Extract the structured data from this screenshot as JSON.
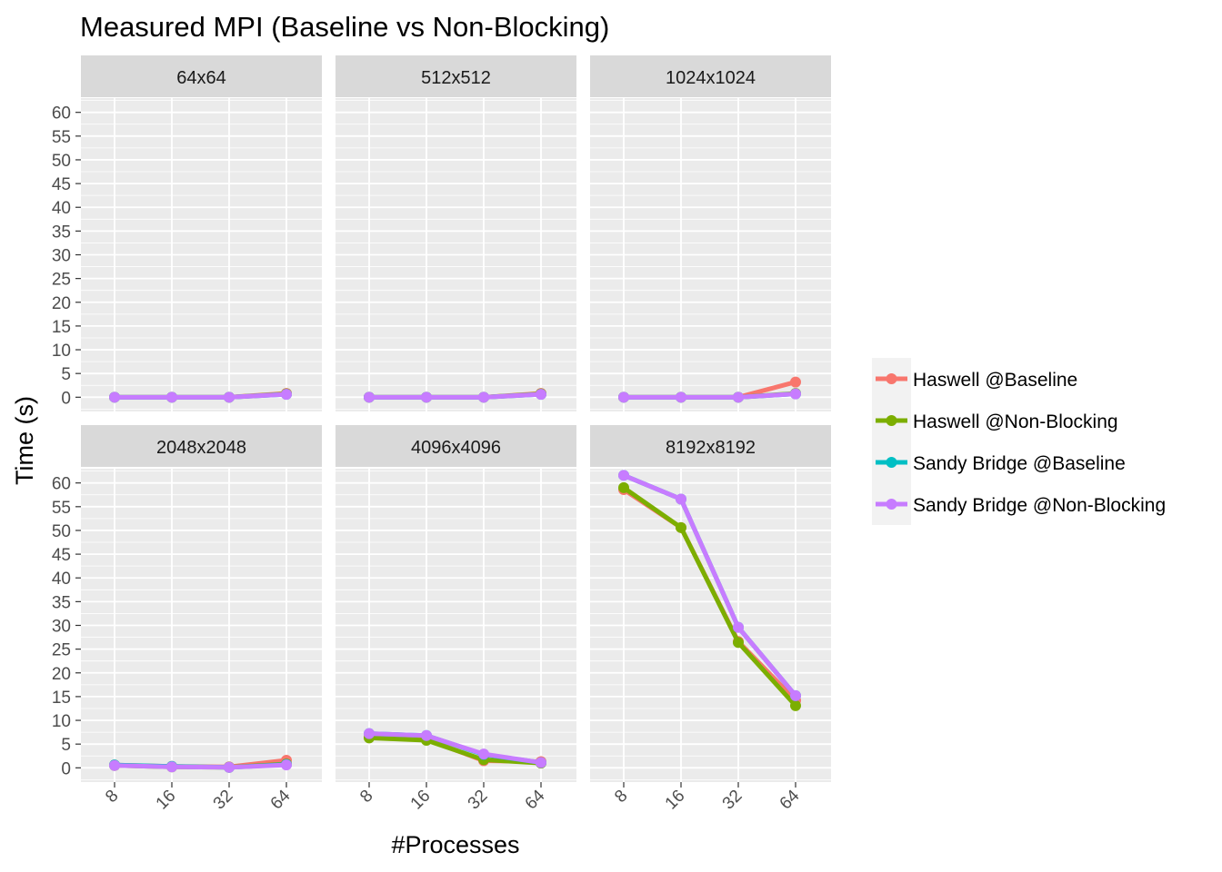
{
  "chart_data": {
    "type": "line",
    "title": "Measured MPI (Baseline vs Non-Blocking)",
    "xlabel": "#Processes",
    "ylabel": "Time (s)",
    "x": [
      "8",
      "16",
      "32",
      "64"
    ],
    "ylim": [
      -3,
      63
    ],
    "yticks": [
      "0",
      "5",
      "10",
      "15",
      "20",
      "25",
      "30",
      "35",
      "40",
      "45",
      "50",
      "55",
      "60"
    ],
    "grid": true,
    "legend_position": "right",
    "colors": {
      "Haswell @Baseline": "#F8766D",
      "Haswell @Non-Blocking": "#7CAE00",
      "Sandy Bridge @Baseline": "#00BFC4",
      "Sandy Bridge @Non-Blocking": "#C77CFF"
    },
    "panels": [
      {
        "label": "64x64",
        "series": [
          {
            "name": "Haswell @Baseline",
            "values": [
              0,
              0,
              0,
              0.8
            ]
          },
          {
            "name": "Haswell @Non-Blocking",
            "values": [
              0,
              0,
              0,
              0.7
            ]
          },
          {
            "name": "Sandy Bridge @Baseline",
            "values": [
              0,
              0,
              0,
              0.6
            ]
          },
          {
            "name": "Sandy Bridge @Non-Blocking",
            "values": [
              0,
              0,
              0,
              0.6
            ]
          }
        ]
      },
      {
        "label": "512x512",
        "series": [
          {
            "name": "Haswell @Baseline",
            "values": [
              0,
              0,
              0,
              0.8
            ]
          },
          {
            "name": "Haswell @Non-Blocking",
            "values": [
              0,
              0,
              0,
              0.7
            ]
          },
          {
            "name": "Sandy Bridge @Baseline",
            "values": [
              0,
              0,
              0,
              0.6
            ]
          },
          {
            "name": "Sandy Bridge @Non-Blocking",
            "values": [
              0,
              0,
              0,
              0.6
            ]
          }
        ]
      },
      {
        "label": "1024x1024",
        "series": [
          {
            "name": "Haswell @Baseline",
            "values": [
              0,
              0,
              0,
              3.2
            ]
          },
          {
            "name": "Haswell @Non-Blocking",
            "values": [
              0,
              0,
              0,
              0.8
            ]
          },
          {
            "name": "Sandy Bridge @Baseline",
            "values": [
              0,
              0,
              0,
              0.7
            ]
          },
          {
            "name": "Sandy Bridge @Non-Blocking",
            "values": [
              0,
              0,
              0,
              0.7
            ]
          }
        ]
      },
      {
        "label": "2048x2048",
        "series": [
          {
            "name": "Haswell @Baseline",
            "values": [
              0.6,
              0.3,
              0.2,
              1.6
            ]
          },
          {
            "name": "Haswell @Non-Blocking",
            "values": [
              0.5,
              0.2,
              0.1,
              0.8
            ]
          },
          {
            "name": "Sandy Bridge @Baseline",
            "values": [
              0.6,
              0.3,
              0.1,
              0.7
            ]
          },
          {
            "name": "Sandy Bridge @Non-Blocking",
            "values": [
              0.5,
              0.2,
              0.1,
              0.6
            ]
          }
        ]
      },
      {
        "label": "4096x4096",
        "series": [
          {
            "name": "Haswell @Baseline",
            "values": [
              6.5,
              6.0,
              1.5,
              1.3
            ]
          },
          {
            "name": "Haswell @Non-Blocking",
            "values": [
              6.3,
              5.8,
              1.7,
              1.0
            ]
          },
          {
            "name": "Sandy Bridge @Baseline",
            "values": [
              7.2,
              6.8,
              2.8,
              1.1
            ]
          },
          {
            "name": "Sandy Bridge @Non-Blocking",
            "values": [
              7.2,
              6.8,
              2.9,
              1.1
            ]
          }
        ]
      },
      {
        "label": "8192x8192",
        "series": [
          {
            "name": "Haswell @Baseline",
            "values": [
              58.6,
              50.6,
              26.6,
              14.2
            ]
          },
          {
            "name": "Haswell @Non-Blocking",
            "values": [
              59.0,
              50.6,
              26.4,
              13.1
            ]
          },
          {
            "name": "Sandy Bridge @Baseline",
            "values": [
              61.6,
              56.6,
              29.6,
              15.2
            ]
          },
          {
            "name": "Sandy Bridge @Non-Blocking",
            "values": [
              61.6,
              56.6,
              29.6,
              15.2
            ]
          }
        ]
      }
    ]
  }
}
